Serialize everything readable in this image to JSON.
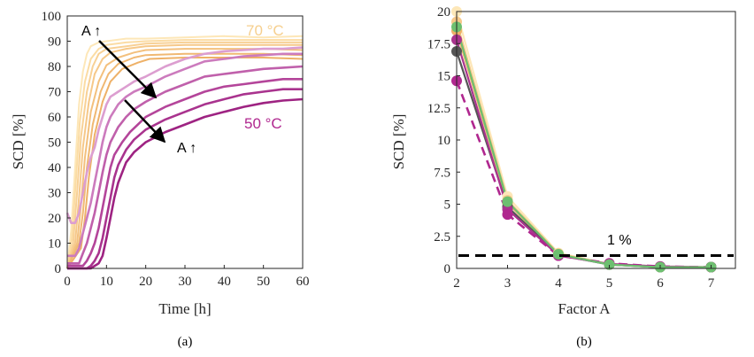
{
  "chart_data": [
    {
      "type": "line",
      "xlabel": "Time [h]",
      "ylabel": "SCD [%]",
      "xlim": [
        0,
        60
      ],
      "ylim": [
        0,
        100
      ],
      "xticks": [
        "0",
        "10",
        "20",
        "30",
        "40",
        "50",
        "60"
      ],
      "yticks": [
        "0",
        "10",
        "20",
        "30",
        "40",
        "50",
        "60",
        "70",
        "80",
        "90",
        "100"
      ],
      "caption": "(a)",
      "annotations": {
        "arrow_a": "A ↑",
        "arrow_b": "A ↑",
        "t_high": "70 °C",
        "t_low": "50 °C"
      },
      "colors": {
        "t_high": "#f6cf8e",
        "t_low": "#b0278f"
      },
      "series_70": [
        {
          "color": "#fde7b8",
          "values": [
            [
              0,
              0
            ],
            [
              1,
              15
            ],
            [
              2,
              40
            ],
            [
              3,
              65
            ],
            [
              4,
              78
            ],
            [
              5,
              85
            ],
            [
              6,
              88
            ],
            [
              8,
              89.5
            ],
            [
              10,
              90
            ],
            [
              15,
              91
            ],
            [
              20,
              91
            ],
            [
              30,
              91.5
            ],
            [
              40,
              92
            ],
            [
              50,
              91.5
            ],
            [
              60,
              92
            ]
          ]
        },
        {
          "color": "#fbdca4",
          "values": [
            [
              0,
              0
            ],
            [
              1.2,
              12
            ],
            [
              2.2,
              35
            ],
            [
              3.2,
              58
            ],
            [
              4.5,
              74
            ],
            [
              6,
              83
            ],
            [
              8,
              87
            ],
            [
              10,
              88.5
            ],
            [
              15,
              89.5
            ],
            [
              20,
              90
            ],
            [
              30,
              90.5
            ],
            [
              40,
              90.5
            ],
            [
              50,
              90.5
            ],
            [
              60,
              90.5
            ]
          ]
        },
        {
          "color": "#f8d196",
          "values": [
            [
              0,
              0
            ],
            [
              1.5,
              10
            ],
            [
              2.5,
              30
            ],
            [
              3.5,
              52
            ],
            [
              5,
              70
            ],
            [
              6.5,
              80
            ],
            [
              8,
              85
            ],
            [
              10,
              87
            ],
            [
              15,
              88
            ],
            [
              20,
              89
            ],
            [
              30,
              89.5
            ],
            [
              40,
              89.5
            ],
            [
              50,
              89.5
            ],
            [
              60,
              89.5
            ]
          ]
        },
        {
          "color": "#f6c889",
          "values": [
            [
              0,
              0
            ],
            [
              2,
              10
            ],
            [
              3,
              28
            ],
            [
              4,
              48
            ],
            [
              5.5,
              66
            ],
            [
              7,
              77
            ],
            [
              9,
              83
            ],
            [
              11,
              85.5
            ],
            [
              15,
              87
            ],
            [
              20,
              88
            ],
            [
              30,
              88.5
            ],
            [
              40,
              88.5
            ],
            [
              50,
              88.5
            ],
            [
              60,
              88.5
            ]
          ]
        },
        {
          "color": "#f3c07d",
          "values": [
            [
              0,
              0
            ],
            [
              2.5,
              10
            ],
            [
              3.5,
              25
            ],
            [
              4.5,
              44
            ],
            [
              6,
              62
            ],
            [
              8,
              74
            ],
            [
              10,
              80.5
            ],
            [
              13,
              83.5
            ],
            [
              17,
              85.5
            ],
            [
              20,
              86.5
            ],
            [
              30,
              87
            ],
            [
              40,
              87
            ],
            [
              50,
              87
            ],
            [
              60,
              86.5
            ]
          ]
        },
        {
          "color": "#f0b872",
          "values": [
            [
              0,
              0
            ],
            [
              3,
              10
            ],
            [
              4,
              22
            ],
            [
              5,
              40
            ],
            [
              6.5,
              57
            ],
            [
              8.5,
              70
            ],
            [
              10.5,
              77
            ],
            [
              13,
              81
            ],
            [
              17,
              83.5
            ],
            [
              20,
              84.5
            ],
            [
              30,
              85
            ],
            [
              40,
              85
            ],
            [
              50,
              85
            ],
            [
              60,
              84.5
            ]
          ]
        },
        {
          "color": "#eeb168",
          "values": [
            [
              0,
              0
            ],
            [
              3.5,
              8
            ],
            [
              4.5,
              20
            ],
            [
              5.5,
              36
            ],
            [
              7,
              53
            ],
            [
              9,
              66
            ],
            [
              11,
              74
            ],
            [
              14,
              79
            ],
            [
              18,
              81.5
            ],
            [
              21,
              83
            ],
            [
              30,
              83.5
            ],
            [
              40,
              83.5
            ],
            [
              50,
              83.5
            ],
            [
              60,
              83
            ]
          ]
        }
      ],
      "series_50": [
        {
          "color": "#dc9ed0",
          "values": [
            [
              0,
              22
            ],
            [
              1,
              18
            ],
            [
              2,
              18
            ],
            [
              3,
              22
            ],
            [
              4,
              30
            ],
            [
              5,
              38
            ],
            [
              6,
              44
            ],
            [
              7,
              48
            ],
            [
              8,
              55
            ],
            [
              9,
              60
            ],
            [
              10,
              65
            ],
            [
              11,
              68
            ],
            [
              13,
              70
            ],
            [
              15,
              72
            ],
            [
              17,
              74
            ],
            [
              20,
              76
            ],
            [
              25,
              80
            ],
            [
              30,
              83
            ],
            [
              35,
              85
            ],
            [
              40,
              86
            ],
            [
              45,
              86.5
            ],
            [
              50,
              87
            ],
            [
              55,
              87
            ],
            [
              60,
              87.5
            ]
          ]
        },
        {
          "color": "#cc7bbd",
          "values": [
            [
              0,
              5
            ],
            [
              2,
              5
            ],
            [
              3,
              8
            ],
            [
              4,
              14
            ],
            [
              5,
              20
            ],
            [
              6,
              26
            ],
            [
              7,
              34
            ],
            [
              8,
              42
            ],
            [
              9,
              50
            ],
            [
              10,
              56
            ],
            [
              11,
              60
            ],
            [
              13,
              65
            ],
            [
              15,
              68
            ],
            [
              17,
              70
            ],
            [
              20,
              72
            ],
            [
              25,
              76
            ],
            [
              30,
              79
            ],
            [
              35,
              82
            ],
            [
              40,
              83
            ],
            [
              45,
              84
            ],
            [
              50,
              84.5
            ],
            [
              55,
              85
            ],
            [
              60,
              85
            ]
          ]
        },
        {
          "color": "#c060ab",
          "values": [
            [
              0,
              2
            ],
            [
              3,
              2
            ],
            [
              4,
              6
            ],
            [
              5,
              10
            ],
            [
              6,
              16
            ],
            [
              7,
              22
            ],
            [
              8,
              30
            ],
            [
              9,
              38
            ],
            [
              10,
              45
            ],
            [
              11,
              50
            ],
            [
              13,
              56
            ],
            [
              15,
              60
            ],
            [
              17,
              63
            ],
            [
              20,
              66
            ],
            [
              25,
              70
            ],
            [
              30,
              73
            ],
            [
              35,
              76
            ],
            [
              40,
              77
            ],
            [
              45,
              78
            ],
            [
              50,
              79
            ],
            [
              55,
              79.5
            ],
            [
              60,
              80
            ]
          ]
        },
        {
          "color": "#b4459a",
          "values": [
            [
              0,
              1
            ],
            [
              4,
              1
            ],
            [
              5,
              3
            ],
            [
              6,
              6
            ],
            [
              7,
              10
            ],
            [
              8,
              16
            ],
            [
              9,
              24
            ],
            [
              10,
              32
            ],
            [
              11,
              40
            ],
            [
              12,
              45
            ],
            [
              14,
              50
            ],
            [
              16,
              54
            ],
            [
              18,
              57
            ],
            [
              20,
              60
            ],
            [
              25,
              64
            ],
            [
              30,
              67
            ],
            [
              35,
              70
            ],
            [
              40,
              72
            ],
            [
              45,
              73
            ],
            [
              50,
              74
            ],
            [
              55,
              75
            ],
            [
              60,
              75
            ]
          ]
        },
        {
          "color": "#a9338e",
          "values": [
            [
              0,
              0
            ],
            [
              5,
              0
            ],
            [
              6,
              1
            ],
            [
              7,
              3
            ],
            [
              8,
              6
            ],
            [
              9,
              12
            ],
            [
              10,
              20
            ],
            [
              11,
              28
            ],
            [
              12,
              36
            ],
            [
              13,
              41
            ],
            [
              15,
              47
            ],
            [
              17,
              51
            ],
            [
              20,
              55
            ],
            [
              25,
              59
            ],
            [
              30,
              62
            ],
            [
              35,
              65
            ],
            [
              40,
              67
            ],
            [
              45,
              69
            ],
            [
              50,
              70
            ],
            [
              55,
              71
            ],
            [
              60,
              71
            ]
          ]
        },
        {
          "color": "#9e2382",
          "values": [
            [
              0,
              0
            ],
            [
              6,
              0
            ],
            [
              7,
              1
            ],
            [
              8,
              2
            ],
            [
              9,
              5
            ],
            [
              10,
              12
            ],
            [
              11,
              20
            ],
            [
              12,
              28
            ],
            [
              13,
              34
            ],
            [
              15,
              42
            ],
            [
              17,
              46
            ],
            [
              20,
              50
            ],
            [
              25,
              54
            ],
            [
              30,
              57
            ],
            [
              35,
              60
            ],
            [
              40,
              62
            ],
            [
              45,
              64
            ],
            [
              50,
              65.5
            ],
            [
              55,
              66.5
            ],
            [
              60,
              67
            ]
          ]
        }
      ]
    },
    {
      "type": "line",
      "xlabel": "Factor A",
      "ylabel": "SCD [%]",
      "xlim": [
        2,
        7
      ],
      "ylim": [
        0,
        20
      ],
      "xticks": [
        "2",
        "3",
        "4",
        "5",
        "6",
        "7"
      ],
      "yticks": [
        "0",
        "2.5",
        "5",
        "7.5",
        "10",
        "12.5",
        "15",
        "17.5",
        "20"
      ],
      "caption": "(b)",
      "threshold": {
        "value": 1,
        "label": "1 %"
      },
      "x": [
        2,
        3,
        4,
        5,
        6,
        7
      ],
      "series": [
        {
          "color": "#fde7b8",
          "values": [
            20,
            5.6,
            1.2,
            0.35,
            0.15,
            0.1
          ]
        },
        {
          "color": "#f6c889",
          "values": [
            19.2,
            5.3,
            1.15,
            0.3,
            0.12,
            0.1
          ]
        },
        {
          "color": "#eeb168",
          "values": [
            18.5,
            5.1,
            1.1,
            0.3,
            0.1,
            0.1
          ]
        },
        {
          "color": "#555555",
          "values": [
            16.9,
            4.8,
            1.05,
            0.3,
            0.1,
            0.1
          ]
        },
        {
          "color": "#a9338e",
          "values": [
            17.8,
            4.6,
            1.0,
            0.35,
            0.15,
            0.1
          ]
        },
        {
          "color": "#b0278f",
          "dashed": true,
          "values": [
            14.6,
            4.2,
            1.0,
            0.4,
            0.15,
            0.1
          ]
        },
        {
          "color": "#6dbf70",
          "values": [
            18.8,
            5.2,
            1.1,
            0.3,
            0.1,
            0.1
          ]
        }
      ]
    }
  ]
}
